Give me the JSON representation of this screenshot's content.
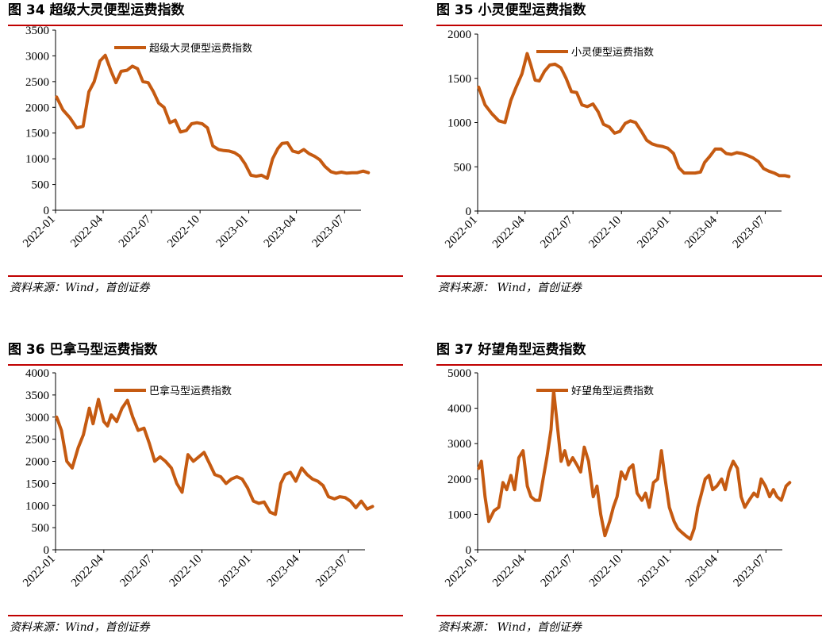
{
  "colors": {
    "line": "#c55a11",
    "rule": "#c00000"
  },
  "chart_data": [
    {
      "type": "line",
      "figure_label": "图 34 超级大灵便型运费指数",
      "source": "资料来源：Wind，首创证券",
      "series": [
        {
          "name": "超级大灵便型运费指数",
          "x": [
            "2022-01-03",
            "2022-01-15",
            "2022-01-28",
            "2022-02-10",
            "2022-02-22",
            "2022-03-05",
            "2022-03-15",
            "2022-03-26",
            "2022-04-05",
            "2022-04-16",
            "2022-04-25",
            "2022-05-05",
            "2022-05-16",
            "2022-05-26",
            "2022-06-05",
            "2022-06-15",
            "2022-06-25",
            "2022-07-05",
            "2022-07-15",
            "2022-07-25",
            "2022-08-05",
            "2022-08-15",
            "2022-08-25",
            "2022-09-05",
            "2022-09-15",
            "2022-09-25",
            "2022-10-05",
            "2022-10-15",
            "2022-10-25",
            "2022-11-05",
            "2022-11-15",
            "2022-11-25",
            "2022-12-05",
            "2022-12-15",
            "2022-12-25",
            "2023-01-05",
            "2023-01-15",
            "2023-01-25",
            "2023-02-05",
            "2023-02-15",
            "2023-02-25",
            "2023-03-05",
            "2023-03-15",
            "2023-03-25",
            "2023-04-05",
            "2023-04-15",
            "2023-04-25",
            "2023-05-05",
            "2023-05-15",
            "2023-05-25",
            "2023-06-05",
            "2023-06-15",
            "2023-06-25",
            "2023-07-05",
            "2023-07-15",
            "2023-07-25",
            "2023-08-05",
            "2023-08-15"
          ],
          "values": [
            2200,
            1950,
            1800,
            1600,
            1630,
            2300,
            2500,
            2900,
            3010,
            2700,
            2480,
            2700,
            2720,
            2800,
            2750,
            2500,
            2480,
            2300,
            2080,
            2000,
            1700,
            1750,
            1520,
            1550,
            1680,
            1700,
            1680,
            1600,
            1250,
            1180,
            1160,
            1150,
            1120,
            1050,
            900,
            680,
            660,
            680,
            620,
            1000,
            1200,
            1300,
            1310,
            1150,
            1120,
            1180,
            1100,
            1050,
            980,
            850,
            750,
            720,
            740,
            720,
            730,
            730,
            760,
            730
          ]
        }
      ],
      "ylim": [
        0,
        3500
      ],
      "yticks": [
        0,
        500,
        1000,
        1500,
        2000,
        2500,
        3000,
        3500
      ],
      "xticks": [
        "2022-01",
        "2022-04",
        "2022-07",
        "2022-10",
        "2023-01",
        "2023-04",
        "2023-07"
      ],
      "xlim": [
        "2022-01",
        "2023-08"
      ],
      "legend": "top"
    },
    {
      "type": "line",
      "figure_label": "图 35 小灵便型运费指数",
      "source": "资料来源： Wind，首创证券",
      "series": [
        {
          "name": "小灵便型运费指数",
          "x": [
            "2022-01-03",
            "2022-01-15",
            "2022-01-28",
            "2022-02-10",
            "2022-02-22",
            "2022-03-05",
            "2022-03-15",
            "2022-03-26",
            "2022-04-05",
            "2022-04-12",
            "2022-04-20",
            "2022-04-28",
            "2022-05-08",
            "2022-05-18",
            "2022-05-28",
            "2022-06-08",
            "2022-06-18",
            "2022-06-28",
            "2022-07-08",
            "2022-07-18",
            "2022-07-28",
            "2022-08-08",
            "2022-08-18",
            "2022-08-28",
            "2022-09-08",
            "2022-09-18",
            "2022-09-28",
            "2022-10-08",
            "2022-10-18",
            "2022-10-28",
            "2022-11-08",
            "2022-11-18",
            "2022-11-28",
            "2022-12-08",
            "2022-12-18",
            "2022-12-28",
            "2023-01-08",
            "2023-01-18",
            "2023-01-28",
            "2023-02-08",
            "2023-02-18",
            "2023-02-28",
            "2023-03-08",
            "2023-03-18",
            "2023-03-28",
            "2023-04-08",
            "2023-04-18",
            "2023-04-28",
            "2023-05-08",
            "2023-05-18",
            "2023-05-28",
            "2023-06-08",
            "2023-06-18",
            "2023-06-28",
            "2023-07-08",
            "2023-07-18",
            "2023-07-28",
            "2023-08-08",
            "2023-08-15"
          ],
          "values": [
            1400,
            1200,
            1100,
            1020,
            1000,
            1250,
            1400,
            1550,
            1780,
            1650,
            1480,
            1470,
            1580,
            1650,
            1660,
            1620,
            1500,
            1350,
            1340,
            1200,
            1180,
            1210,
            1120,
            980,
            950,
            880,
            900,
            990,
            1020,
            1000,
            900,
            800,
            760,
            740,
            730,
            710,
            650,
            490,
            430,
            430,
            430,
            440,
            550,
            620,
            700,
            700,
            650,
            640,
            660,
            650,
            630,
            600,
            560,
            480,
            450,
            430,
            400,
            400,
            390
          ]
        }
      ],
      "ylim": [
        0,
        2000
      ],
      "yticks": [
        0,
        500,
        1000,
        1500,
        2000
      ],
      "xticks": [
        "2022-01",
        "2022-04",
        "2022-07",
        "2022-10",
        "2023-01",
        "2023-04",
        "2023-07"
      ],
      "xlim": [
        "2022-01",
        "2023-08"
      ],
      "legend": "top"
    },
    {
      "type": "line",
      "figure_label": "图 36 巴拿马型运费指数",
      "source": "资料来源：Wind，首创证券",
      "series": [
        {
          "name": "巴拿马型运费指数",
          "x": [
            "2022-01-03",
            "2022-01-12",
            "2022-01-22",
            "2022-02-01",
            "2022-02-12",
            "2022-02-22",
            "2022-03-05",
            "2022-03-12",
            "2022-03-22",
            "2022-04-01",
            "2022-04-08",
            "2022-04-15",
            "2022-04-25",
            "2022-05-05",
            "2022-05-15",
            "2022-05-25",
            "2022-06-04",
            "2022-06-15",
            "2022-06-25",
            "2022-07-05",
            "2022-07-15",
            "2022-07-25",
            "2022-08-05",
            "2022-08-15",
            "2022-08-25",
            "2022-09-05",
            "2022-09-15",
            "2022-09-25",
            "2022-10-05",
            "2022-10-15",
            "2022-10-25",
            "2022-11-05",
            "2022-11-15",
            "2022-11-25",
            "2022-12-05",
            "2022-12-15",
            "2022-12-25",
            "2023-01-05",
            "2023-01-15",
            "2023-01-25",
            "2023-02-05",
            "2023-02-15",
            "2023-02-25",
            "2023-03-05",
            "2023-03-15",
            "2023-03-25",
            "2023-04-05",
            "2023-04-15",
            "2023-04-25",
            "2023-05-05",
            "2023-05-15",
            "2023-05-25",
            "2023-06-05",
            "2023-06-15",
            "2023-06-25",
            "2023-07-05",
            "2023-07-15",
            "2023-07-25",
            "2023-08-05",
            "2023-08-15"
          ],
          "values": [
            3000,
            2700,
            2000,
            1850,
            2300,
            2600,
            3200,
            2850,
            3400,
            2900,
            2800,
            3050,
            2900,
            3200,
            3380,
            3000,
            2700,
            2750,
            2400,
            2000,
            2100,
            2000,
            1850,
            1500,
            1300,
            2150,
            2000,
            2100,
            2200,
            1950,
            1700,
            1650,
            1500,
            1600,
            1650,
            1600,
            1400,
            1100,
            1050,
            1080,
            850,
            800,
            1500,
            1700,
            1750,
            1550,
            1850,
            1700,
            1600,
            1550,
            1450,
            1200,
            1150,
            1200,
            1180,
            1100,
            950,
            1100,
            920,
            980
          ]
        }
      ],
      "ylim": [
        0,
        4000
      ],
      "yticks": [
        0,
        500,
        1000,
        1500,
        2000,
        2500,
        3000,
        3500,
        4000
      ],
      "xticks": [
        "2022-01",
        "2022-04",
        "2022-07",
        "2022-10",
        "2023-01",
        "2023-04",
        "2023-07"
      ],
      "xlim": [
        "2022-01",
        "2023-08"
      ],
      "legend": "top"
    },
    {
      "type": "line",
      "figure_label": "图 37 好望角型运费指数",
      "source": "资料来源： Wind，首创证券",
      "series": [
        {
          "name": "好望角型运费指数",
          "x": [
            "2022-01-03",
            "2022-01-08",
            "2022-01-15",
            "2022-01-22",
            "2022-02-01",
            "2022-02-10",
            "2022-02-18",
            "2022-02-25",
            "2022-03-05",
            "2022-03-12",
            "2022-03-20",
            "2022-03-28",
            "2022-04-05",
            "2022-04-12",
            "2022-04-20",
            "2022-04-28",
            "2022-05-05",
            "2022-05-12",
            "2022-05-20",
            "2022-05-25",
            "2022-06-01",
            "2022-06-08",
            "2022-06-15",
            "2022-06-22",
            "2022-06-30",
            "2022-07-08",
            "2022-07-15",
            "2022-07-22",
            "2022-07-30",
            "2022-08-08",
            "2022-08-15",
            "2022-08-22",
            "2022-08-30",
            "2022-09-08",
            "2022-09-15",
            "2022-09-22",
            "2022-09-30",
            "2022-10-08",
            "2022-10-15",
            "2022-10-22",
            "2022-10-30",
            "2022-11-08",
            "2022-11-15",
            "2022-11-22",
            "2022-11-30",
            "2022-12-08",
            "2022-12-15",
            "2022-12-22",
            "2022-12-30",
            "2023-01-08",
            "2023-01-15",
            "2023-01-22",
            "2023-01-30",
            "2023-02-08",
            "2023-02-15",
            "2023-02-22",
            "2023-03-01",
            "2023-03-08",
            "2023-03-15",
            "2023-03-22",
            "2023-03-30",
            "2023-04-08",
            "2023-04-15",
            "2023-04-22",
            "2023-04-30",
            "2023-05-08",
            "2023-05-15",
            "2023-05-22",
            "2023-05-30",
            "2023-06-08",
            "2023-06-15",
            "2023-06-22",
            "2023-06-30",
            "2023-07-08",
            "2023-07-15",
            "2023-07-22",
            "2023-07-30",
            "2023-08-08",
            "2023-08-15"
          ],
          "values": [
            2300,
            2500,
            1500,
            800,
            1100,
            1200,
            1900,
            1700,
            2100,
            1700,
            2600,
            2800,
            1800,
            1500,
            1400,
            1400,
            2000,
            2600,
            3400,
            4500,
            3500,
            2500,
            2800,
            2400,
            2600,
            2400,
            2200,
            2900,
            2500,
            1500,
            1800,
            1000,
            400,
            800,
            1200,
            1500,
            2200,
            2000,
            2300,
            2400,
            1600,
            1400,
            1600,
            1200,
            1900,
            2000,
            2800,
            2000,
            1200,
            800,
            600,
            500,
            400,
            300,
            600,
            1200,
            1600,
            2000,
            2100,
            1700,
            1800,
            2000,
            1700,
            2200,
            2500,
            2300,
            1500,
            1200,
            1400,
            1600,
            1500,
            2000,
            1800,
            1500,
            1700,
            1500,
            1400,
            1800,
            1900
          ]
        }
      ],
      "ylim": [
        0,
        5000
      ],
      "yticks": [
        0,
        1000,
        2000,
        3000,
        4000,
        5000
      ],
      "xticks": [
        "2022-01",
        "2022-04",
        "2022-07",
        "2022-10",
        "2023-01",
        "2023-04",
        "2023-07"
      ],
      "xlim": [
        "2022-01",
        "2023-08"
      ],
      "legend": "top"
    }
  ]
}
